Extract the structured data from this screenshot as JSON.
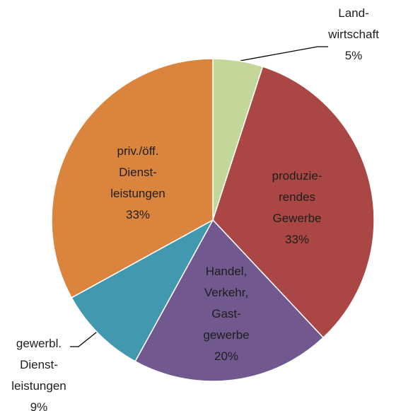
{
  "chart_data": {
    "type": "pie",
    "categories": [
      "Land-\nwirtschaft",
      "produzie-\nrendes\nGewerbe",
      "Handel,\nVerkehr,\nGast-\ngewerbe",
      "gewerbl.\nDienst-\nleistungen",
      "priv./öff.\nDienst-\nleistungen"
    ],
    "values": [
      5,
      33,
      20,
      9,
      33
    ],
    "value_labels": [
      "5%",
      "33%",
      "20%",
      "9%",
      "33%"
    ],
    "colors": [
      "#c4d79b",
      "#aa4643",
      "#71588f",
      "#4198af",
      "#db843d"
    ]
  }
}
